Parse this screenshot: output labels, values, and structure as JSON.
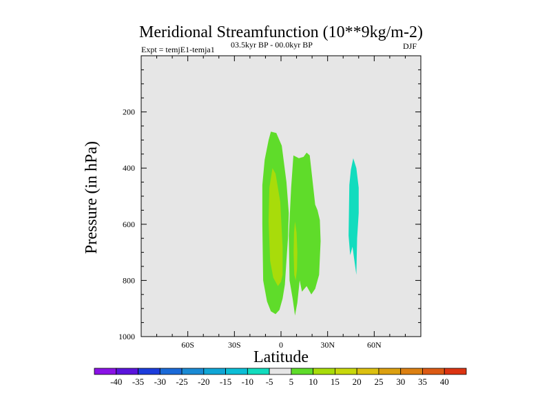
{
  "chart_data": {
    "type": "contour",
    "title": "Meridional Streamfunction (10**9kg/m-2)",
    "left_annotation": "Expt = temjE1-temja1",
    "center_annotation": "03.5kyr BP - 00.0kyr BP",
    "right_annotation": "DJF",
    "xlabel": "Latitude",
    "ylabel": "Pressure (in hPa)",
    "xlim": [
      -90,
      90
    ],
    "ylim": [
      1000,
      0
    ],
    "x_ticks": [
      -60,
      -30,
      0,
      30,
      60
    ],
    "x_tick_labels": [
      "60S",
      "30S",
      "0",
      "30N",
      "60N"
    ],
    "y_ticks": [
      200,
      400,
      600,
      800,
      1000
    ],
    "y_tick_labels": [
      "200",
      "400",
      "600",
      "800",
      "1000"
    ],
    "background_color": "#e6e6e6",
    "regions": [
      {
        "name": "positive-cell-left",
        "level": "5 to 10",
        "color": "#5fdc2a",
        "lat": [
          -6.5,
          -8,
          -10.5,
          -12,
          -12,
          -11.5,
          -9,
          -6.5,
          -3.5,
          -1,
          1,
          2.5,
          3.5,
          4.5,
          5,
          3.5,
          0.5,
          -3
        ],
        "pres": [
          270,
          300,
          370,
          460,
          600,
          800,
          875,
          910,
          920,
          905,
          865,
          815,
          730,
          650,
          560,
          450,
          320,
          275
        ]
      },
      {
        "name": "positive-cell-right",
        "level": "5 to 10",
        "color": "#5fdc2a",
        "lat": [
          8,
          11.5,
          14.5,
          16.5,
          18.5,
          20,
          22,
          23.5,
          25,
          25.5,
          24.5,
          22,
          19.5,
          16.5,
          13.5,
          12,
          10.5,
          9,
          7.5,
          5.5,
          5,
          6.5
        ],
        "pres": [
          355,
          365,
          360,
          345,
          355,
          430,
          530,
          550,
          585,
          660,
          780,
          830,
          850,
          820,
          840,
          800,
          880,
          925,
          865,
          800,
          640,
          470
        ]
      },
      {
        "name": "core-left",
        "level": "10 to 15",
        "color": "#a8dc0a",
        "lat": [
          -5.5,
          -7.5,
          -8,
          -7,
          -5,
          -2,
          0,
          1,
          1,
          -0.5,
          -3.5
        ],
        "pres": [
          400,
          470,
          590,
          730,
          790,
          820,
          805,
          780,
          680,
          520,
          420
        ]
      },
      {
        "name": "core-right",
        "level": "10 to 15",
        "color": "#a8dc0a",
        "lat": [
          9,
          10,
          10.5,
          10.3,
          9.5,
          8.5,
          8.1,
          8.4
        ],
        "pres": [
          590,
          630,
          700,
          760,
          800,
          780,
          700,
          630
        ]
      },
      {
        "name": "negative-cell",
        "level": "-10 to -5",
        "color": "#12dcbe",
        "lat": [
          46.5,
          48.5,
          50,
          50,
          49,
          48.5,
          47,
          46,
          44.5,
          43.5,
          44,
          45
        ],
        "pres": [
          365,
          400,
          470,
          560,
          650,
          780,
          720,
          680,
          710,
          640,
          460,
          405
        ]
      }
    ],
    "colorbar": {
      "labels": [
        "-40",
        "-35",
        "-30",
        "-25",
        "-20",
        "-15",
        "-10",
        "-5",
        "5",
        "10",
        "15",
        "20",
        "25",
        "30",
        "35",
        "40"
      ],
      "colors": [
        "#8a12e6",
        "#5a14dc",
        "#1c3cdc",
        "#1a6ad8",
        "#1a8ad4",
        "#10a6d6",
        "#0cbed6",
        "#12dcbe",
        "#e6e6e6",
        "#5fdc2a",
        "#a8dc0a",
        "#c8d80c",
        "#dcc010",
        "#dca010",
        "#dc8012",
        "#dc5a14",
        "#dc3412"
      ]
    }
  }
}
